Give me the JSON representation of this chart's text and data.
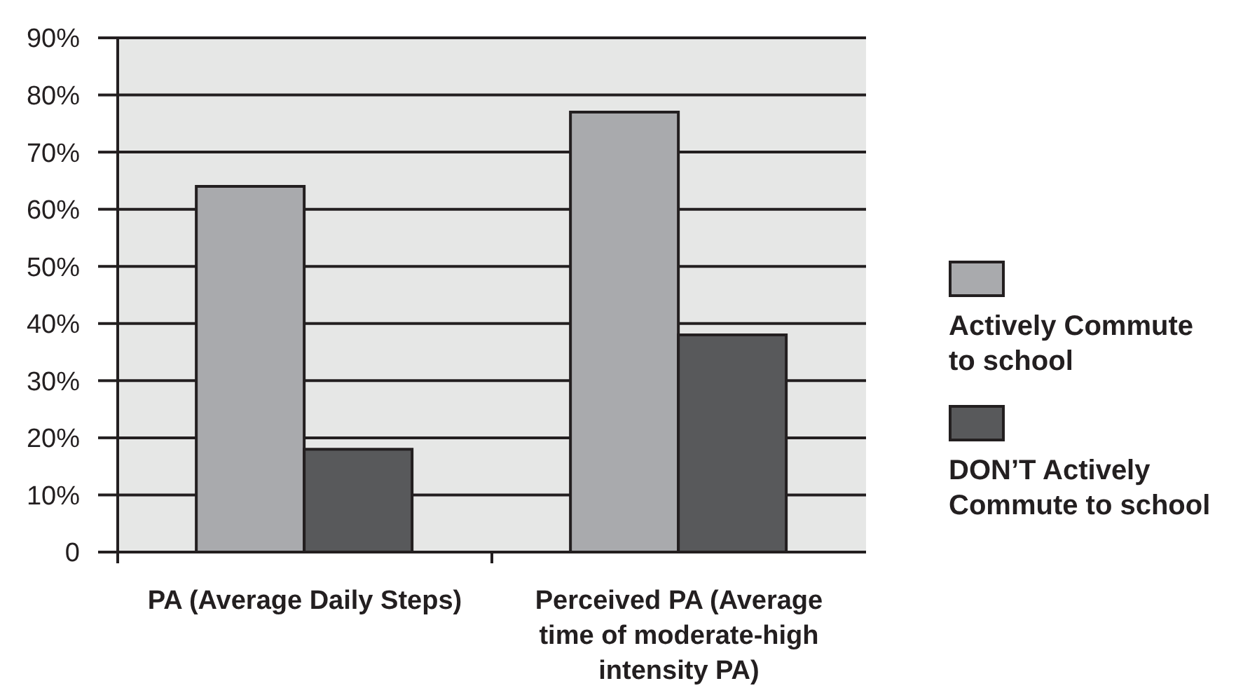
{
  "chart_data": {
    "type": "bar",
    "categories": [
      "PA (Average Daily Steps)",
      "Perceived PA (Average time of moderate-high intensity PA)"
    ],
    "series": [
      {
        "name": "Actively Commute to school",
        "color": "#a9aaad",
        "values": [
          64,
          77
        ]
      },
      {
        "name": "DON’T Actively Commute to school",
        "color": "#58595b",
        "values": [
          18,
          38
        ]
      }
    ],
    "ylim": [
      0,
      90
    ],
    "yticks": [
      0,
      {
        "value": 10,
        "label": "10%"
      },
      {
        "value": 20,
        "label": "20%"
      },
      {
        "value": 30,
        "label": "30%"
      },
      {
        "value": 40,
        "label": "40%"
      },
      {
        "value": 50,
        "label": "50%"
      },
      {
        "value": 60,
        "label": "60%"
      },
      {
        "value": 70,
        "label": "70%"
      },
      {
        "value": 80,
        "label": "80%"
      },
      {
        "value": 90,
        "label": "90%"
      }
    ],
    "grid": "y",
    "legend": "right"
  }
}
